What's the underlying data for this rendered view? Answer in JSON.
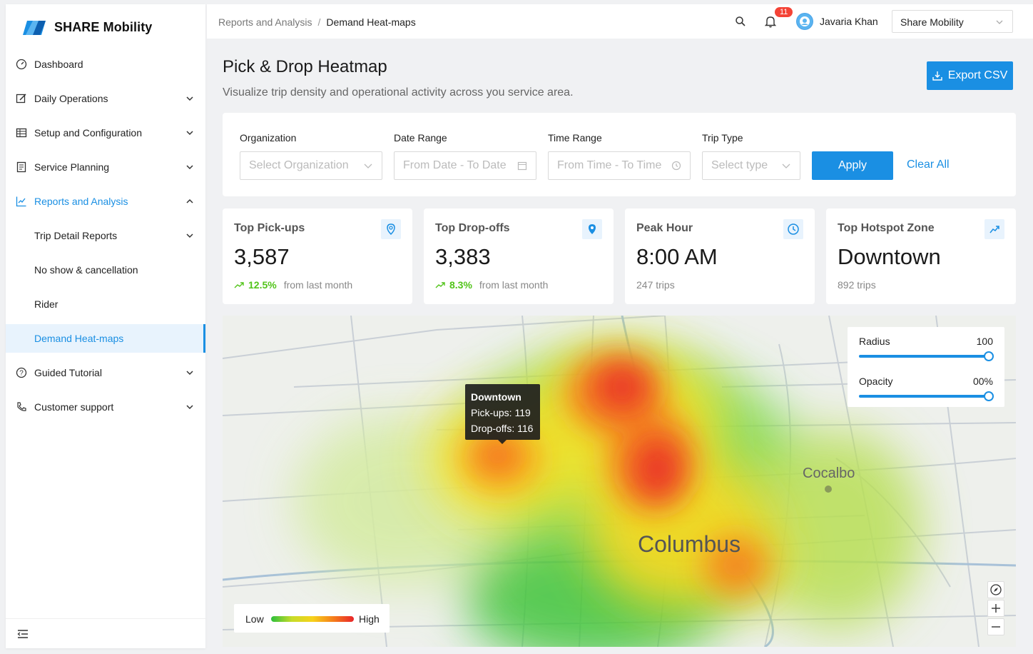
{
  "app": {
    "name": "SHARE Mobility"
  },
  "sidebar": {
    "items": [
      {
        "label": "Dashboard",
        "icon": "dashboard-icon",
        "chevron": false
      },
      {
        "label": "Daily Operations",
        "icon": "edit-icon",
        "chevron": true
      },
      {
        "label": "Setup and Configuration",
        "icon": "table-icon",
        "chevron": true
      },
      {
        "label": "Service Planning",
        "icon": "list-icon",
        "chevron": true
      },
      {
        "label": "Reports and Analysis",
        "icon": "chart-line-icon",
        "chevron": true,
        "expanded": true
      },
      {
        "label": "Trip Detail Reports",
        "chevron": true
      },
      {
        "label": "No show & cancellation",
        "chevron": false
      },
      {
        "label": "Rider",
        "chevron": false
      },
      {
        "label": "Demand Heat-maps",
        "chevron": false,
        "selected": true
      },
      {
        "label": "Guided Tutorial",
        "icon": "question-icon",
        "chevron": true
      },
      {
        "label": "Customer support",
        "icon": "phone-icon",
        "chevron": true
      }
    ]
  },
  "header": {
    "breadcrumb": [
      "Reports and Analysis",
      "Demand Heat-maps"
    ],
    "breadcrumb_sep": "/",
    "notifications": "11",
    "user": "Javaria Khan",
    "org_select": "Share Mobility"
  },
  "page": {
    "title": "Pick & Drop Heatmap",
    "subtitle": "Visualize trip density and operational activity across you service area.",
    "export_label": "Export CSV"
  },
  "filters": {
    "organization": {
      "label": "Organization",
      "placeholder": "Select Organization"
    },
    "date_range": {
      "label": "Date Range",
      "placeholder": "From Date - To Date"
    },
    "time_range": {
      "label": "Time Range",
      "placeholder": "From Time - To Time"
    },
    "trip_type": {
      "label": "Trip Type",
      "placeholder": "Select type"
    },
    "apply_label": "Apply",
    "clear_label": "Clear All"
  },
  "cards": [
    {
      "title": "Top Pick-ups",
      "value": "3,587",
      "pct": "12.5%",
      "foot": "from last month",
      "icon": "location-pin-icon"
    },
    {
      "title": "Top Drop-offs",
      "value": "3,383",
      "pct": "8.3%",
      "foot": "from last month",
      "icon": "location-filled-icon"
    },
    {
      "title": "Peak Hour",
      "value": "8:00 AM",
      "foot": "247 trips",
      "icon": "clock-icon"
    },
    {
      "title": "Top Hotspot Zone",
      "value": "Downtown",
      "foot": "892 trips",
      "icon": "trend-up-icon"
    }
  ],
  "map": {
    "tooltip": {
      "title": "Downtown",
      "pickups": "Pick-ups: 119",
      "dropoffs": "Drop-offs: 116"
    },
    "city_label": "Columbus",
    "town_label": "Cocalbo",
    "radius": {
      "label": "Radius",
      "value": "100",
      "level": 1.0
    },
    "opacity": {
      "label": "Opacity",
      "value": "00%",
      "level": 1.0
    },
    "legend": {
      "low": "Low",
      "high": "High"
    },
    "colors": {
      "low": "#2cbf3c",
      "mid": "#f7d21b",
      "high": "#e8252a"
    }
  },
  "colors": {
    "accent": "#1a8fe3",
    "positive": "#52c41a",
    "badge": "#f44336"
  }
}
